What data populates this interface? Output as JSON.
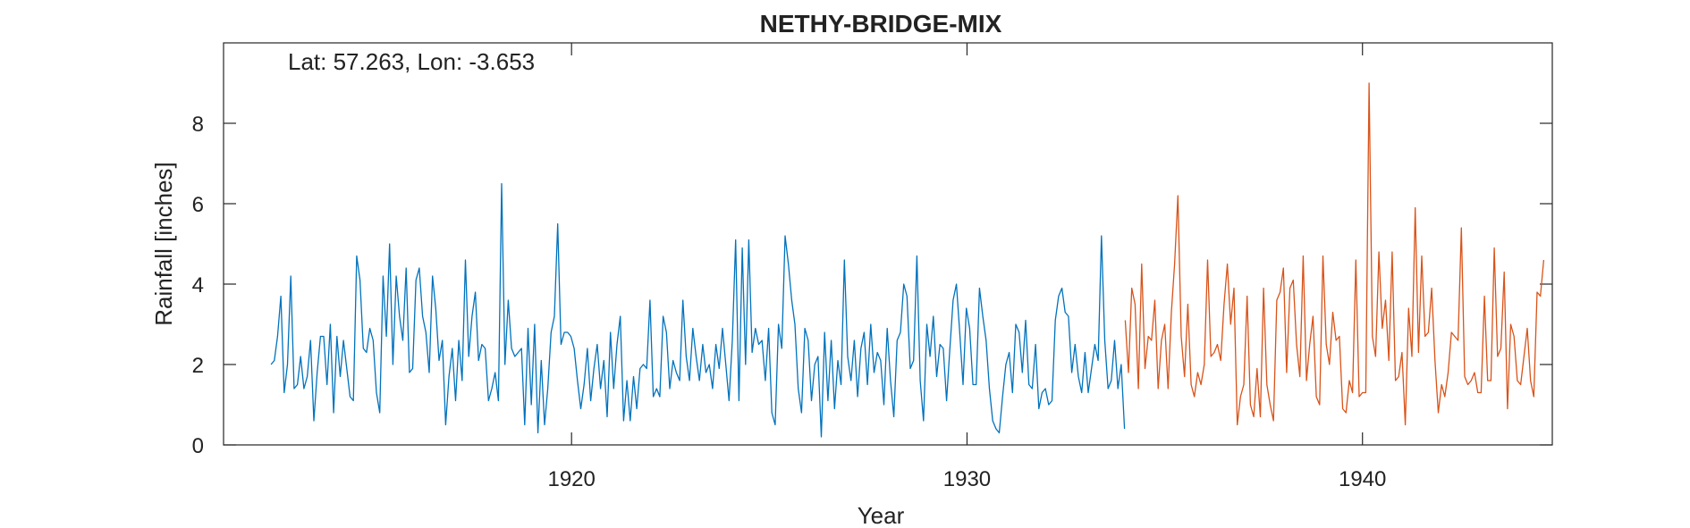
{
  "chart_data": {
    "type": "line",
    "title": "NETHY-BRIDGE-MIX",
    "xlabel": "Year",
    "ylabel": "Rainfall [inches]",
    "annotation": "Lat: 57.263, Lon: -3.653",
    "xlim": [
      1911.2,
      1944.8
    ],
    "ylim": [
      0,
      10
    ],
    "x_ticks": [
      1920,
      1930,
      1940
    ],
    "y_ticks": [
      0,
      2,
      4,
      6,
      8
    ],
    "grid": false,
    "legend": "none",
    "series": [
      {
        "color": "#0072BD",
        "x_start": 1912.4,
        "x_step": 0.08333,
        "values": [
          2.0,
          2.1,
          2.7,
          3.7,
          1.3,
          2.0,
          4.2,
          1.4,
          1.5,
          2.2,
          1.4,
          1.7,
          2.6,
          0.6,
          1.8,
          2.7,
          2.7,
          1.5,
          3.0,
          0.8,
          2.7,
          1.7,
          2.6,
          1.9,
          1.2,
          1.1,
          4.7,
          4.1,
          2.4,
          2.3,
          2.9,
          2.6,
          1.3,
          0.8,
          4.2,
          2.7,
          5.0,
          2.0,
          4.2,
          3.2,
          2.6,
          4.4,
          1.8,
          1.9,
          4.1,
          4.4,
          3.2,
          2.8,
          1.8,
          4.2,
          3.4,
          2.1,
          2.6,
          0.5,
          1.7,
          2.4,
          1.1,
          2.6,
          1.6,
          4.6,
          2.2,
          3.2,
          3.8,
          2.1,
          2.5,
          2.4,
          1.1,
          1.4,
          1.8,
          1.1,
          6.5,
          2.0,
          3.6,
          2.4,
          2.2,
          2.3,
          2.4,
          0.5,
          2.9,
          1.0,
          3.0,
          0.3,
          2.1,
          0.5,
          1.4,
          2.8,
          3.2,
          5.5,
          2.5,
          2.8,
          2.8,
          2.7,
          2.4,
          1.6,
          0.9,
          1.5,
          2.4,
          1.1,
          1.9,
          2.5,
          1.4,
          2.1,
          0.7,
          2.8,
          1.4,
          2.5,
          3.2,
          0.6,
          1.6,
          0.6,
          1.7,
          0.9,
          1.9,
          2.0,
          1.9,
          3.6,
          1.2,
          1.4,
          1.2,
          3.2,
          2.8,
          1.4,
          2.1,
          1.8,
          1.6,
          3.6,
          2.2,
          1.6,
          2.9,
          2.2,
          1.6,
          2.5,
          1.8,
          2.0,
          1.4,
          2.5,
          1.9,
          2.9,
          2.0,
          1.1,
          2.6,
          5.1,
          1.1,
          4.9,
          2.0,
          5.1,
          2.3,
          2.9,
          2.5,
          2.6,
          1.6,
          2.9,
          0.8,
          0.5,
          3.0,
          2.4,
          5.2,
          4.5,
          3.6,
          3.0,
          1.4,
          0.8,
          2.9,
          2.6,
          1.1,
          2.0,
          2.2,
          0.2,
          2.8,
          1.1,
          2.6,
          0.9,
          2.1,
          1.5,
          4.6,
          2.2,
          1.6,
          2.6,
          1.2,
          2.4,
          2.8,
          1.5,
          3.0,
          1.8,
          2.3,
          2.1,
          1.0,
          2.9,
          1.6,
          0.7,
          2.6,
          2.8,
          4.0,
          3.7,
          1.9,
          2.1,
          4.7,
          1.6,
          0.6,
          3.0,
          2.2,
          3.2,
          1.7,
          2.5,
          2.4,
          1.1,
          2.4,
          3.6,
          4.0,
          2.8,
          1.5,
          3.4,
          2.9,
          1.5,
          1.5,
          3.9,
          3.2,
          2.6,
          1.4,
          0.6,
          0.4,
          0.3,
          1.2,
          2.0,
          2.3,
          1.3,
          3.0,
          2.8,
          1.8,
          3.1,
          1.5,
          1.4,
          2.5,
          0.9,
          1.3,
          1.4,
          1.0,
          1.1,
          3.1,
          3.7,
          3.9,
          3.3,
          3.2,
          1.8,
          2.5,
          1.7,
          1.3,
          2.3,
          1.3,
          1.9,
          2.5,
          2.1,
          5.2,
          2.6,
          1.4,
          1.6,
          2.6,
          1.4,
          2.0,
          0.4
        ]
      },
      {
        "color": "#D95319",
        "x_start": 1934.0,
        "x_step": 0.08333,
        "values": [
          3.1,
          1.8,
          3.9,
          3.5,
          1.4,
          4.5,
          1.9,
          2.7,
          2.6,
          3.6,
          1.4,
          2.6,
          3.0,
          1.4,
          3.3,
          4.5,
          6.2,
          2.7,
          1.7,
          3.5,
          1.5,
          1.2,
          1.8,
          1.5,
          2.0,
          4.6,
          2.2,
          2.3,
          2.5,
          2.1,
          3.5,
          4.5,
          3.0,
          3.9,
          0.5,
          1.2,
          1.5,
          3.7,
          1.0,
          0.7,
          1.9,
          0.7,
          3.9,
          1.5,
          1.0,
          0.6,
          3.6,
          3.8,
          4.4,
          1.8,
          3.9,
          4.1,
          2.5,
          1.7,
          4.7,
          1.6,
          2.5,
          3.2,
          1.2,
          1.0,
          4.7,
          2.5,
          2.0,
          3.3,
          2.6,
          2.7,
          0.9,
          0.8,
          1.6,
          1.3,
          4.6,
          1.2,
          1.3,
          1.3,
          9.0,
          2.7,
          2.2,
          4.8,
          2.9,
          3.6,
          2.1,
          4.8,
          1.6,
          1.7,
          2.3,
          0.5,
          3.4,
          2.2,
          5.9,
          2.3,
          4.7,
          2.7,
          2.8,
          3.9,
          2.1,
          0.8,
          1.5,
          1.2,
          1.8,
          2.8,
          2.7,
          2.6,
          5.4,
          1.7,
          1.5,
          1.6,
          1.8,
          1.3,
          1.3,
          3.7,
          1.6,
          1.6,
          4.9,
          2.2,
          2.4,
          4.3,
          0.9,
          3.0,
          2.7,
          1.6,
          1.5,
          2.2,
          2.9,
          1.6,
          1.2,
          3.8,
          3.7,
          4.6
        ]
      }
    ]
  }
}
